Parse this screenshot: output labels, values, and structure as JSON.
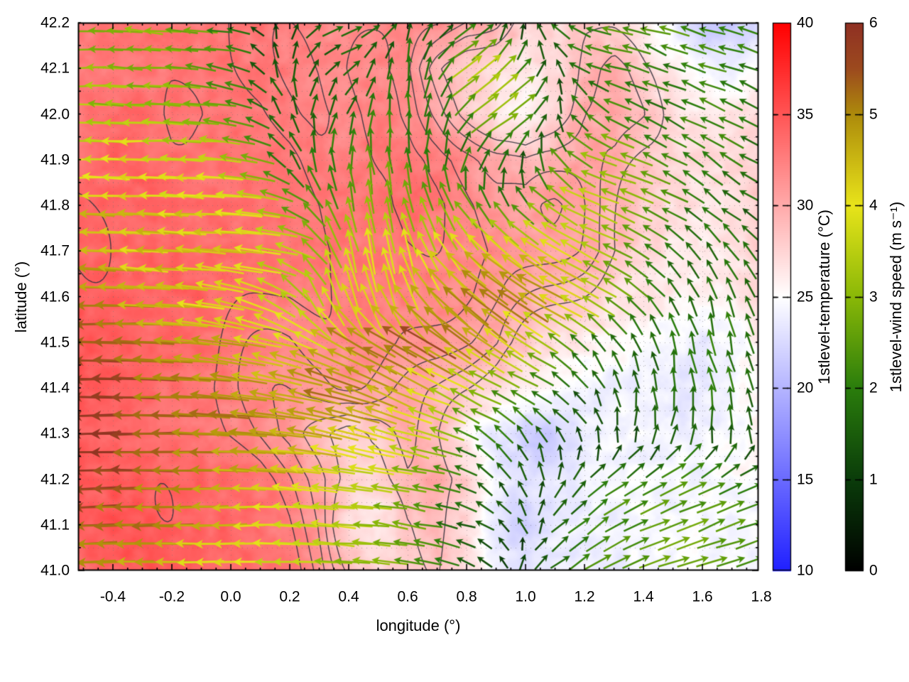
{
  "figure": {
    "xlabel": "longitude (°)",
    "ylabel": "latitude (°)",
    "x_tick_values": [
      -0.4,
      -0.2,
      0.0,
      0.2,
      0.4,
      0.6,
      0.8,
      1.0,
      1.2,
      1.4,
      1.6,
      1.8
    ],
    "x_tick_labels": [
      "-0.4",
      "-0.2",
      "0.0",
      "0.2",
      "0.4",
      "0.6",
      "0.8",
      "1.0",
      "1.2",
      "1.4",
      "1.6",
      "1.8"
    ],
    "y_tick_values": [
      41.0,
      41.1,
      41.2,
      41.3,
      41.4,
      41.5,
      41.6,
      41.7,
      41.8,
      41.9,
      42.0,
      42.1,
      42.2
    ],
    "y_tick_labels": [
      "41.0",
      "41.1",
      "41.2",
      "41.3",
      "41.4",
      "41.5",
      "41.6",
      "41.7",
      "41.8",
      "41.9",
      "42.0",
      "42.1",
      "42.2"
    ],
    "grid_color": "#9a9a9a",
    "contour_color": "#34343e"
  },
  "chart_data": {
    "type": "heatmap",
    "overlays": [
      "contour",
      "quiver"
    ],
    "title": "",
    "xlabel": "longitude (°)",
    "ylabel": "latitude (°)",
    "x_range": [
      -0.52,
      1.79
    ],
    "y_range": [
      41.0,
      42.2
    ],
    "grid_lon": [
      -0.5,
      -0.4,
      -0.3,
      -0.2,
      -0.1,
      0.0,
      0.1,
      0.2,
      0.3,
      0.4,
      0.5,
      0.6,
      0.7,
      0.8,
      0.9,
      1.0,
      1.1,
      1.2,
      1.3,
      1.4,
      1.5,
      1.6,
      1.7,
      1.8
    ],
    "grid_lat": [
      42.2,
      42.1,
      42.0,
      41.9,
      41.8,
      41.7,
      41.6,
      41.5,
      41.4,
      41.3,
      41.2,
      41.1,
      41.0
    ],
    "temperature": [
      [
        33,
        33,
        33,
        33,
        33,
        33,
        33,
        32.5,
        32,
        31.5,
        32,
        32.5,
        32,
        30.5,
        30,
        28,
        27.5,
        28.5,
        27.5,
        26,
        24,
        21.5,
        21,
        23
      ],
      [
        33,
        33,
        33,
        33,
        33,
        33,
        33,
        32.5,
        32,
        32,
        32,
        31.5,
        29,
        27.5,
        27,
        26.5,
        27,
        29.5,
        29.5,
        27.5,
        26,
        24.5,
        24,
        25
      ],
      [
        33,
        33.5,
        33.5,
        33,
        33,
        33,
        33,
        32.5,
        32,
        32,
        32.5,
        32,
        30.5,
        28.5,
        26.5,
        25.5,
        27.5,
        30,
        30.5,
        29,
        27,
        26,
        26.5,
        27.5
      ],
      [
        33.5,
        34,
        34,
        33.5,
        33.5,
        33.5,
        33,
        33,
        32.5,
        32.5,
        33,
        33,
        32.5,
        31.5,
        30,
        29,
        29.5,
        30.5,
        30,
        28.5,
        27.5,
        27,
        27,
        28
      ],
      [
        34,
        34,
        34,
        34,
        33.5,
        33.5,
        33.5,
        33,
        33,
        33,
        33,
        33.5,
        33,
        32,
        31,
        30.5,
        31,
        30.5,
        29.5,
        28,
        27,
        26.5,
        27,
        28
      ],
      [
        34,
        34,
        34,
        34,
        34,
        33.5,
        33.5,
        33,
        33,
        33,
        33,
        33,
        32.5,
        32,
        31.5,
        31,
        30.5,
        30,
        29,
        27.5,
        26.5,
        26,
        26.5,
        27.5
      ],
      [
        34.5,
        34.5,
        34,
        34,
        34,
        33.5,
        33,
        32.5,
        32.5,
        32.5,
        32.5,
        32.5,
        32,
        31.5,
        31,
        30,
        29,
        28,
        27,
        26.5,
        26,
        25.5,
        26,
        27
      ],
      [
        35,
        34.5,
        34,
        34,
        33.5,
        33,
        32.5,
        32,
        32,
        32,
        32,
        31.5,
        31,
        30.5,
        30,
        28.5,
        27,
        26,
        25.5,
        25,
        24,
        23.5,
        24.5,
        26
      ],
      [
        35,
        34.5,
        34,
        33.5,
        33,
        32.5,
        32,
        31.5,
        31,
        31,
        30.5,
        30,
        29.5,
        28.5,
        27.5,
        26,
        25,
        24.5,
        24,
        24,
        23.5,
        23.5,
        24.5,
        25.5
      ],
      [
        34.5,
        34,
        34,
        33.5,
        33,
        32.5,
        32,
        31,
        29,
        27,
        28,
        30,
        29,
        26,
        23,
        21.5,
        21.5,
        24,
        24.5,
        24.5,
        24,
        24,
        25,
        25.5
      ],
      [
        34.5,
        34.5,
        34.5,
        34,
        34,
        33.5,
        33,
        32,
        30.5,
        28,
        27.5,
        29.5,
        30,
        28,
        24.5,
        23,
        23.5,
        24,
        24.5,
        24.5,
        24.5,
        24.5,
        25,
        25
      ],
      [
        34.5,
        35,
        35,
        34.5,
        34,
        34,
        33.5,
        32.5,
        31,
        27,
        26,
        28.5,
        29.5,
        27,
        23,
        22,
        23.5,
        24,
        24,
        24.5,
        24.5,
        24.5,
        24.5,
        24.5
      ],
      [
        34,
        34.5,
        35,
        34.5,
        34,
        34,
        33.5,
        33,
        31.5,
        29,
        27.5,
        28,
        28.5,
        27,
        24,
        23.5,
        24,
        24,
        24,
        24.5,
        24.5,
        24.5,
        24.5,
        24.5
      ]
    ],
    "wind_u": [
      [
        -3,
        -2.8,
        -3,
        -2.5,
        -2.8,
        -2,
        -1,
        0.5,
        1.5,
        2,
        1.5,
        0.5,
        1,
        1.8,
        0.5,
        -0.5,
        -1.5,
        -2,
        -2.5,
        -2,
        -2.5,
        -2,
        -2.2,
        -2
      ],
      [
        -3.2,
        -3,
        -2.8,
        -3,
        -2.5,
        -2,
        -1,
        0,
        0.8,
        1.2,
        0.5,
        0,
        0.5,
        3,
        2.5,
        1.5,
        -0.5,
        -1.8,
        -2.2,
        -2,
        -1.8,
        -2.2,
        -2,
        -1.8
      ],
      [
        -3.5,
        -3.2,
        -3.5,
        -3,
        -2.8,
        -2.5,
        -1.5,
        -0.5,
        0.3,
        0.8,
        0.3,
        0,
        0.5,
        1.5,
        2.8,
        2,
        0.5,
        -1.5,
        -2,
        -1.8,
        -1.5,
        -2,
        -1.8,
        -1.5
      ],
      [
        -4,
        -3.8,
        -4,
        -3.5,
        -3.8,
        -3.5,
        -2.5,
        -1,
        -0.3,
        0,
        -0.5,
        -0.3,
        0,
        0.5,
        0.8,
        0.3,
        -1.5,
        -2.5,
        -3,
        -2.5,
        -2,
        -1.5,
        -1.8,
        -1.5
      ],
      [
        -4.5,
        -4.2,
        -4.5,
        -4,
        -4.2,
        -4,
        -3.5,
        -2.5,
        -1.5,
        -0.8,
        -0.5,
        -0.8,
        -1.2,
        -1.5,
        -1,
        -1.5,
        -2.5,
        -3.5,
        -3,
        -2.5,
        -2,
        -1.5,
        -1.2,
        -1.5
      ],
      [
        -4.5,
        -4.5,
        -4.3,
        -4.5,
        -4.3,
        -4.5,
        -4,
        -3.5,
        -2,
        -1,
        -0.5,
        -1,
        -2,
        -2.8,
        -3.2,
        -3.5,
        -3.5,
        -3,
        -2.5,
        -2,
        -1.5,
        -1,
        -1,
        -1.2
      ],
      [
        -5,
        -5,
        -4.5,
        -4.5,
        -4,
        -4,
        -3.5,
        -2.5,
        -1.5,
        -1,
        -1.2,
        -2,
        -3,
        -3.8,
        -4.2,
        -4.5,
        -4,
        -3.5,
        -2.5,
        -1.5,
        -1,
        -0.5,
        -0.5,
        -0.8
      ],
      [
        -5.5,
        -5.5,
        -5,
        -5,
        -4.5,
        -4.5,
        -4,
        -4,
        -3.5,
        -4,
        -4.5,
        -4.5,
        -4.5,
        -4,
        -3.5,
        -3,
        -2,
        -1.5,
        -1,
        -0.5,
        -0.3,
        -0.5,
        -0.5,
        -0.8
      ],
      [
        -6,
        -5.5,
        -5.5,
        -5,
        -5,
        -5,
        -4.5,
        -4.5,
        -5,
        -5,
        -4.5,
        -4,
        -3.5,
        -3,
        -2.5,
        -2,
        -1.5,
        -1,
        -0.5,
        -0.3,
        0,
        -0.3,
        -0.5,
        -0.5
      ],
      [
        -6,
        -6,
        -5.5,
        -5.5,
        -5,
        -5,
        -5,
        -4.5,
        -4.5,
        -4,
        -4,
        -3.5,
        -3,
        -2,
        -1.5,
        -1,
        -0.8,
        -0.5,
        0,
        0.3,
        0.5,
        0.3,
        0,
        -0.3
      ],
      [
        -6,
        -5.5,
        -5.5,
        -5,
        -5,
        -4.5,
        -4.5,
        -4,
        -4,
        -3.5,
        -3.5,
        -3,
        -2.5,
        -1.5,
        -1,
        -0.5,
        0.5,
        1,
        1.5,
        1.8,
        2,
        2,
        1.8,
        1.5
      ],
      [
        -5.5,
        -5,
        -5,
        -5,
        -4.5,
        -4.5,
        -4,
        -4,
        -3.5,
        -3.5,
        -3,
        -2.5,
        -2,
        -1.5,
        -1,
        -0.5,
        1.2,
        1.8,
        2,
        2.2,
        2.5,
        2.5,
        2.2,
        2
      ],
      [
        -5,
        -5,
        -4.5,
        -4.5,
        -4,
        -4,
        -4,
        -3.5,
        -3.5,
        -3,
        -3,
        -2.5,
        -2,
        -1.5,
        -1,
        0.5,
        1.5,
        1.8,
        2,
        2.2,
        2.5,
        2.5,
        2.2,
        2
      ]
    ],
    "wind_v": [
      [
        0.2,
        0,
        0.3,
        0.2,
        0,
        0.3,
        0.8,
        1,
        0.8,
        0.5,
        1,
        1.5,
        1.2,
        0.8,
        1.2,
        1,
        1,
        0.8,
        0.5,
        0.5,
        0.8,
        0.5,
        0.8,
        0.5
      ],
      [
        0,
        0.2,
        0,
        0.3,
        0.5,
        0.5,
        1,
        1.5,
        1.2,
        1,
        1.5,
        1.8,
        1.5,
        2,
        2.5,
        1.5,
        1.2,
        0.8,
        0.5,
        0.8,
        0.5,
        0.8,
        0.5,
        0.8
      ],
      [
        0,
        0.2,
        0,
        0.3,
        0.2,
        0.5,
        1,
        1.5,
        1.5,
        1.5,
        2,
        2,
        1.8,
        1.5,
        1.8,
        1.5,
        1.2,
        1.5,
        1,
        0.8,
        1,
        0.8,
        1,
        0.8
      ],
      [
        0,
        0.2,
        0,
        0.3,
        0.2,
        0.3,
        0.8,
        1.5,
        2,
        2.2,
        2.5,
        2.2,
        2,
        1.8,
        1.5,
        1.5,
        1.8,
        1.5,
        1,
        1.2,
        1,
        1.2,
        1,
        0.8
      ],
      [
        0,
        0.2,
        0,
        0.3,
        0,
        0.3,
        0.5,
        1,
        2,
        2.5,
        3,
        2.8,
        2.5,
        2.2,
        1.8,
        1.5,
        1.8,
        1.5,
        1.2,
        1,
        1,
        1,
        1,
        0.8
      ],
      [
        0.3,
        0.2,
        0.3,
        0.2,
        0.3,
        0.3,
        0.5,
        1,
        2.5,
        3.5,
        4,
        3.8,
        3.2,
        3,
        2.8,
        2.5,
        2,
        1.8,
        1.2,
        1.2,
        1.2,
        1.5,
        1.5,
        1.2
      ],
      [
        0,
        0.2,
        0.3,
        0.5,
        0.5,
        1,
        1.5,
        2.5,
        3.5,
        4,
        4,
        3.8,
        3.5,
        3.2,
        3,
        2.8,
        2.2,
        1.8,
        1.5,
        1.5,
        1.5,
        1.5,
        1.8,
        1.5
      ],
      [
        0,
        0,
        0.2,
        0.3,
        0.5,
        0.8,
        1,
        1.5,
        2,
        2.5,
        2.5,
        3,
        3,
        3,
        2.5,
        2,
        1.5,
        1.5,
        1.5,
        1.5,
        1.8,
        2,
        1.8,
        1.5
      ],
      [
        0,
        0,
        0.2,
        0.2,
        0.3,
        0.5,
        0.8,
        1,
        1.5,
        1.5,
        2,
        2,
        1.5,
        1.5,
        1,
        1,
        1,
        1.2,
        1.5,
        1.5,
        1.8,
        2,
        1.8,
        1.5
      ],
      [
        -0.2,
        0,
        0,
        0,
        0.2,
        0.3,
        0.5,
        0.5,
        1,
        1,
        1.2,
        1,
        1,
        1,
        1.5,
        1.5,
        1.2,
        1,
        1.2,
        1.2,
        1.5,
        1.5,
        1.5,
        1.2
      ],
      [
        -0.3,
        -0.2,
        0,
        0,
        0,
        0,
        0.3,
        0.3,
        0.5,
        0.5,
        0.5,
        0.5,
        0.5,
        0.8,
        1,
        1.2,
        1.2,
        1.2,
        1.2,
        1,
        1,
        1,
        0.8,
        0.8
      ],
      [
        -0.3,
        -0.2,
        0,
        0,
        0,
        0,
        0,
        0.2,
        0.3,
        0.3,
        0.3,
        0.5,
        0.5,
        0.5,
        0.8,
        1,
        1.2,
        1.2,
        1.2,
        1,
        1,
        0.8,
        0.8,
        0.8
      ],
      [
        -0.2,
        0,
        0,
        0,
        0,
        0,
        0,
        0,
        0.2,
        0.2,
        0.3,
        0.3,
        0.5,
        0.8,
        0.8,
        1,
        1,
        1.2,
        1.2,
        1,
        0.8,
        0.8,
        0.8,
        0.8
      ]
    ],
    "temperature_colorbar": {
      "label": "1stlevel-temperature (°C)",
      "min": 10,
      "max": 40,
      "tick_values": [
        10,
        15,
        20,
        25,
        30,
        35,
        40
      ],
      "tick_labels": [
        "10",
        "15",
        "20",
        "25",
        "30",
        "35",
        "40"
      ],
      "stops": [
        [
          10,
          "#2020ff"
        ],
        [
          25,
          "#ffffff"
        ],
        [
          40,
          "#ff0000"
        ]
      ]
    },
    "wind_colorbar": {
      "label": "1stlevel-wind speed (m s⁻¹)",
      "min": 0,
      "max": 6,
      "tick_values": [
        0,
        1,
        2,
        3,
        4,
        5,
        6
      ],
      "tick_labels": [
        "0",
        "1",
        "2",
        "3",
        "4",
        "5",
        "6"
      ],
      "stops": [
        [
          0,
          "#000000"
        ],
        [
          1,
          "#0a3c0a"
        ],
        [
          2,
          "#2a7d0c"
        ],
        [
          3,
          "#8ab807"
        ],
        [
          4,
          "#e8e41a"
        ],
        [
          5,
          "#ad8b0b"
        ],
        [
          5.5,
          "#9c4a1e"
        ],
        [
          6,
          "#8f3023"
        ]
      ]
    },
    "contour_levels_m": [
      220,
      470,
      720,
      970,
      1220
    ]
  }
}
